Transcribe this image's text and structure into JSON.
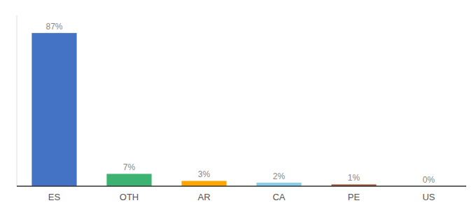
{
  "chart_data": {
    "type": "bar",
    "categories": [
      "ES",
      "OTH",
      "AR",
      "CA",
      "PE",
      "US"
    ],
    "values": [
      87,
      7,
      3,
      2,
      1,
      0
    ],
    "value_labels": [
      "87%",
      "7%",
      "3%",
      "2%",
      "1%",
      "0%"
    ],
    "colors": [
      "#4472C4",
      "#3CB371",
      "#FFA500",
      "#87CEEB",
      "#A0522D",
      "#C0C0C0"
    ],
    "ylim": [
      0,
      97
    ],
    "data_labels": true,
    "tick_labels": "x"
  }
}
